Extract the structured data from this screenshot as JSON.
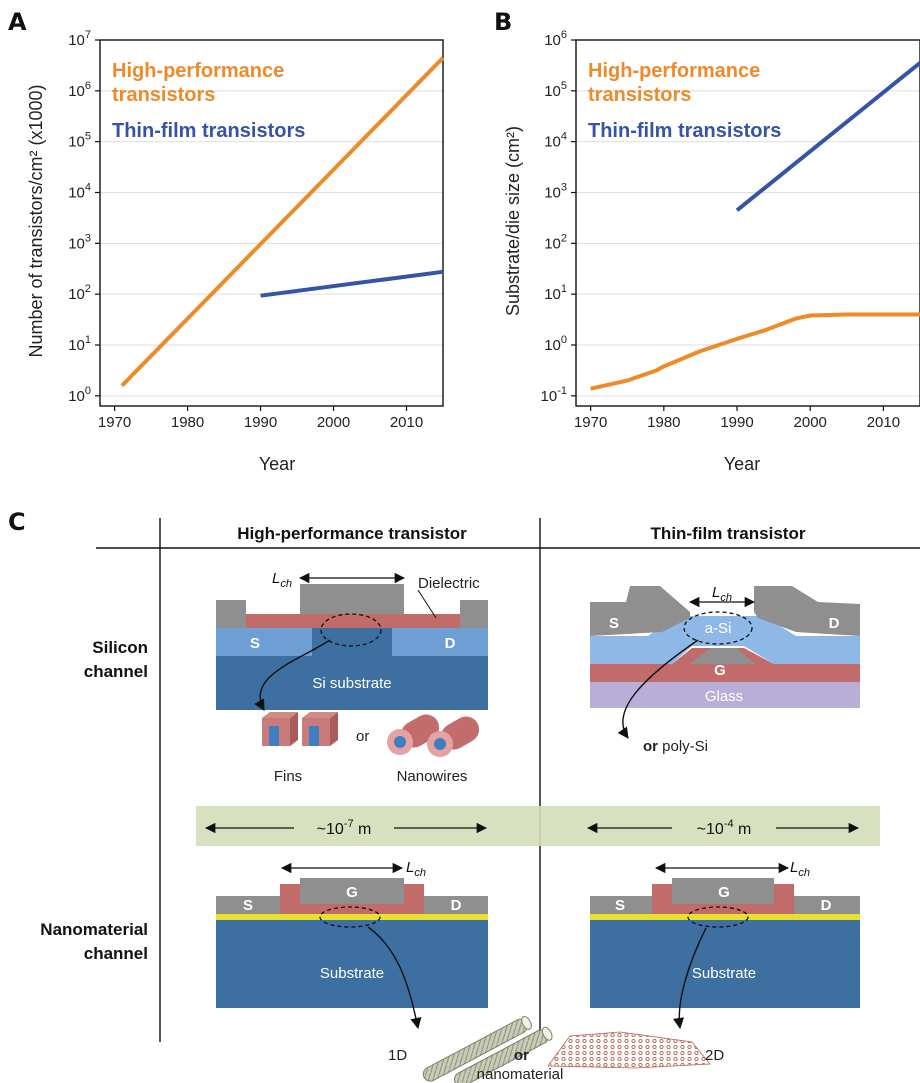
{
  "panels": {
    "a": "A",
    "b": "B",
    "c": "C"
  },
  "colors": {
    "high_performance": "#ef8a2a",
    "thin_film": "#3554a8"
  },
  "chart_data": [
    {
      "type": "line",
      "panel": "A",
      "xlabel": "Year",
      "ylabel": "Number of transistors/cm² (x1000)",
      "y_scale": "log",
      "xlim": [
        1968,
        2015
      ],
      "ylim_exponents": [
        -0.2,
        7
      ],
      "x_ticks": [
        "1970",
        "1980",
        "1990",
        "2000",
        "2010"
      ],
      "y_tick_exponents": [
        "0",
        "1",
        "2",
        "3",
        "4",
        "5",
        "6",
        "7"
      ],
      "grid": "horizontal",
      "legend": "top-left",
      "series": [
        {
          "name": "High-performance transistors",
          "x": [
            1971,
            2015
          ],
          "y_exponent": [
            0.2,
            6.65
          ]
        },
        {
          "name": "Thin-film transistors",
          "x": [
            1990,
            2015
          ],
          "y_exponent": [
            1.97,
            2.44
          ]
        }
      ]
    },
    {
      "type": "line",
      "panel": "B",
      "xlabel": "Year",
      "ylabel": "Substrate/die size (cm²)",
      "y_scale": "log",
      "xlim": [
        1968,
        2015
      ],
      "ylim_exponents": [
        -1.2,
        6
      ],
      "x_ticks": [
        "1970",
        "1980",
        "1990",
        "2000",
        "2010"
      ],
      "y_tick_exponents": [
        "-1",
        "0",
        "1",
        "2",
        "3",
        "4",
        "5",
        "6"
      ],
      "grid": "horizontal",
      "legend": "top-left",
      "series": [
        {
          "name": "High-performance transistors",
          "x": [
            1970,
            1975,
            1979,
            1980,
            1985,
            1990,
            1994,
            1998,
            2000,
            2005,
            2010,
            2015
          ],
          "y_exponent": [
            -0.86,
            -0.7,
            -0.5,
            -0.42,
            -0.12,
            0.12,
            0.3,
            0.52,
            0.58,
            0.6,
            0.6,
            0.6
          ]
        },
        {
          "name": "Thin-film transistors",
          "x": [
            1990,
            2015
          ],
          "y_exponent": [
            2.65,
            5.55
          ]
        }
      ]
    }
  ],
  "diagram": {
    "col_high_performance": "High-performance transistor",
    "col_thin_film": "Thin-film transistor",
    "row_silicon_line1": "Silicon",
    "row_silicon_line2": "channel",
    "row_nano_line1": "Nanomaterial",
    "row_nano_line2": "channel",
    "lch": "L",
    "lch_sub": "ch",
    "dielectric": "Dielectric",
    "source": "S",
    "drain": "D",
    "gate": "G",
    "si_substrate": "Si substrate",
    "a_si": "a-Si",
    "glass": "Glass",
    "fins": "Fins",
    "or": "or",
    "nanowires": "Nanowires",
    "or_bold": "or",
    "poly_si": " poly-Si",
    "scale_hp_prefix": "~10",
    "scale_hp_exp": "-7",
    "scale_hp_unit": " m",
    "scale_tf_prefix": "~10",
    "scale_tf_exp": "-4",
    "scale_tf_unit": " m",
    "substrate": "Substrate",
    "label_1d": "1D",
    "label_2d": "2D",
    "nanomaterial": "nanomaterial"
  }
}
